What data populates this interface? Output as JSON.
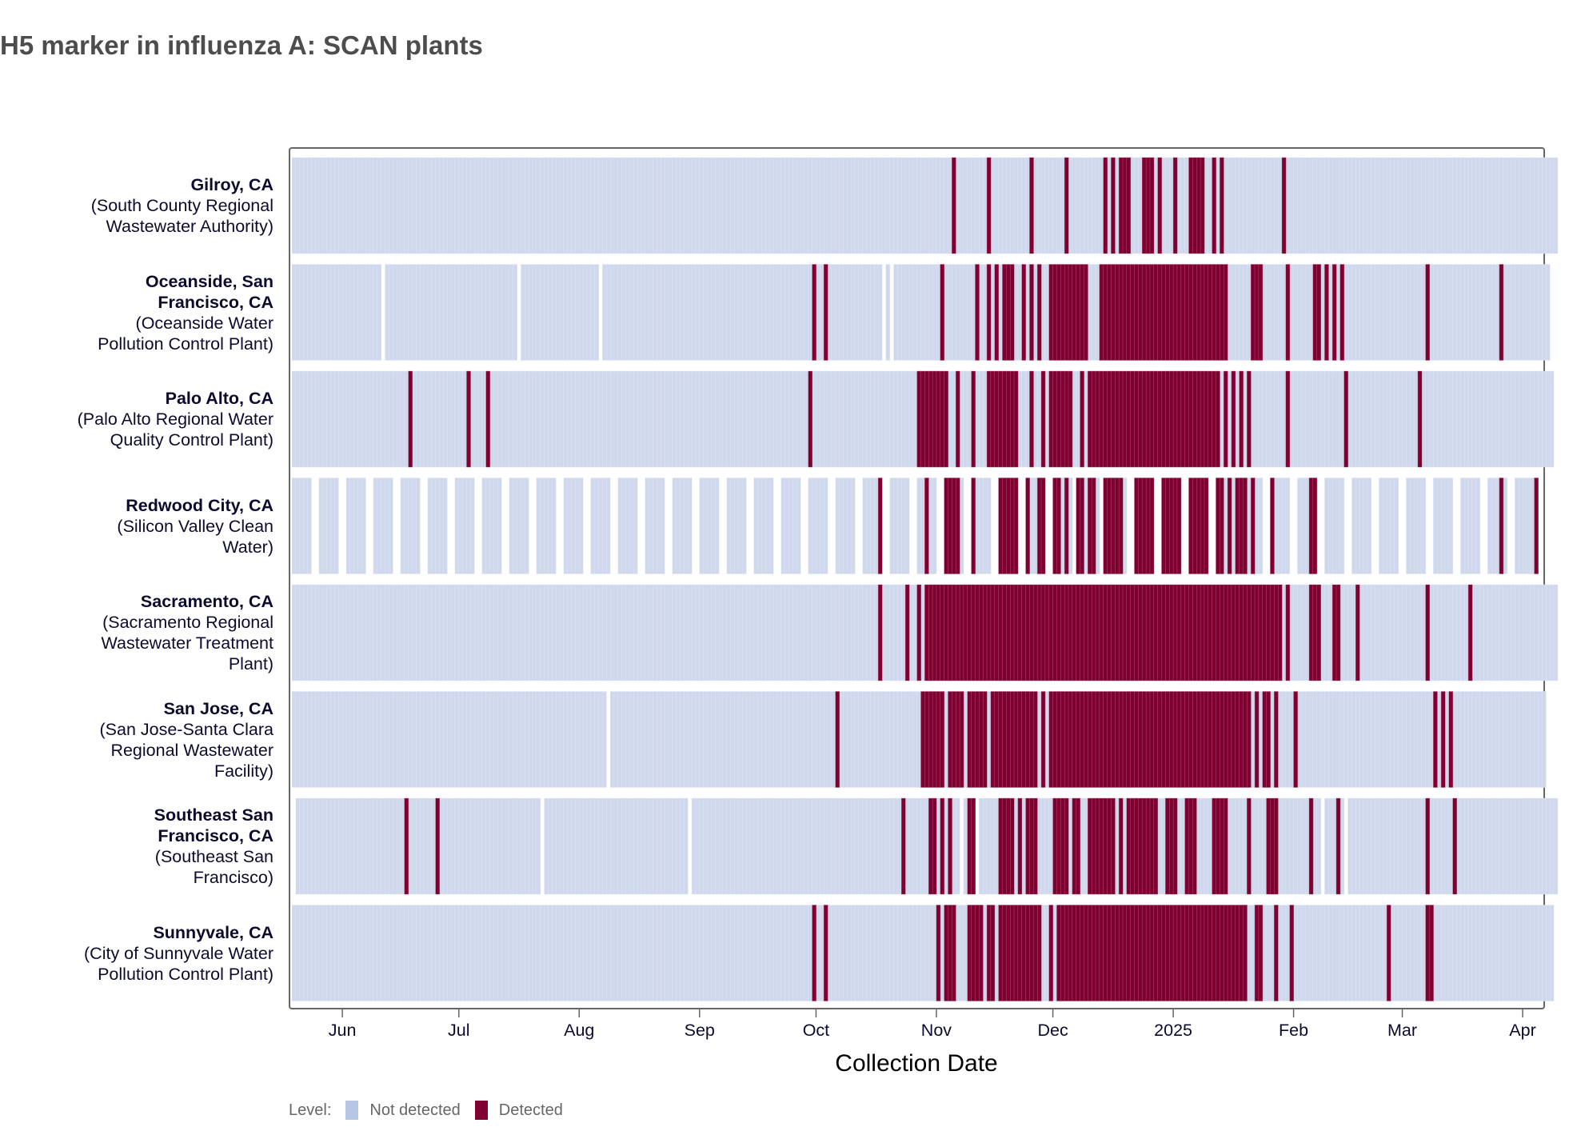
{
  "title": "H5 marker in influenza A: SCAN plants",
  "chart_data": {
    "type": "heatmap",
    "title": "H5 marker in influenza A: SCAN plants",
    "xlabel": "Collection Date",
    "ylabel": "",
    "x_start_date": "2024-05-19",
    "x_end_date": "2025-04-08",
    "x_unit": "days since 2024-05-19",
    "x_ticks": [
      {
        "label": "Jun",
        "day": 13
      },
      {
        "label": "Jul",
        "day": 43
      },
      {
        "label": "Aug",
        "day": 74
      },
      {
        "label": "Sep",
        "day": 105
      },
      {
        "label": "Oct",
        "day": 135
      },
      {
        "label": "Nov",
        "day": 166
      },
      {
        "label": "Dec",
        "day": 196
      },
      {
        "label": "2025",
        "day": 227
      },
      {
        "label": "Feb",
        "day": 258
      },
      {
        "label": "Mar",
        "day": 286
      },
      {
        "label": "Apr",
        "day": 317
      }
    ],
    "legend": {
      "title": "Level:",
      "position": "bottom-left",
      "entries": [
        {
          "label": "Not detected",
          "color": "#b8c6e6"
        },
        {
          "label": "Detected",
          "color": "#800033"
        }
      ]
    },
    "colors": {
      "not_detected_tile": "#cfd8ec",
      "detected": "#7f0030"
    },
    "rows": [
      {
        "city": "Gilroy, CA",
        "plant_lines": [
          "(South County Regional",
          "Wastewater Authority)"
        ],
        "city_lines": [
          "Gilroy, CA"
        ],
        "sampled": [
          [
            0,
            325
          ]
        ],
        "detected": [
          [
            170,
            170
          ],
          [
            179,
            179
          ],
          [
            190,
            190
          ],
          [
            199,
            199
          ],
          [
            209,
            209
          ],
          [
            211,
            211
          ],
          [
            213,
            215
          ],
          [
            219,
            221
          ],
          [
            223,
            223
          ],
          [
            227,
            227
          ],
          [
            231,
            233
          ],
          [
            234,
            234
          ],
          [
            237,
            237
          ],
          [
            239,
            239
          ],
          [
            255,
            255
          ]
        ]
      },
      {
        "city": "Oceanside, San Francisco, CA",
        "city_lines": [
          "Oceanside, San",
          "Francisco, CA"
        ],
        "plant_lines": [
          "(Oceanside Water",
          "Pollution Control Plant)"
        ],
        "sampled": [
          [
            0,
            22
          ],
          [
            24,
            57
          ],
          [
            59,
            78
          ],
          [
            80,
            151
          ],
          [
            153,
            153
          ],
          [
            155,
            323
          ]
        ],
        "detected": [
          [
            134,
            134
          ],
          [
            137,
            137
          ],
          [
            167,
            167
          ],
          [
            176,
            176
          ],
          [
            179,
            179
          ],
          [
            181,
            181
          ],
          [
            183,
            185
          ],
          [
            188,
            188
          ],
          [
            190,
            190
          ],
          [
            192,
            192
          ],
          [
            195,
            204
          ],
          [
            208,
            240
          ],
          [
            247,
            249
          ],
          [
            256,
            256
          ],
          [
            263,
            264
          ],
          [
            266,
            266
          ],
          [
            268,
            268
          ],
          [
            270,
            270
          ],
          [
            292,
            292
          ],
          [
            311,
            311
          ]
        ]
      },
      {
        "city": "Palo Alto, CA",
        "city_lines": [
          "Palo Alto, CA"
        ],
        "plant_lines": [
          "(Palo Alto Regional Water",
          "Quality Control Plant)"
        ],
        "sampled": [
          [
            0,
            324
          ]
        ],
        "detected": [
          [
            30,
            30
          ],
          [
            45,
            45
          ],
          [
            50,
            50
          ],
          [
            133,
            133
          ],
          [
            161,
            168
          ],
          [
            171,
            171
          ],
          [
            175,
            175
          ],
          [
            179,
            179
          ],
          [
            180,
            186
          ],
          [
            190,
            190
          ],
          [
            193,
            193
          ],
          [
            195,
            200
          ],
          [
            203,
            203
          ],
          [
            205,
            224
          ],
          [
            225,
            238
          ],
          [
            240,
            240
          ],
          [
            242,
            242
          ],
          [
            244,
            244
          ],
          [
            246,
            246
          ],
          [
            256,
            256
          ],
          [
            271,
            271
          ],
          [
            290,
            290
          ]
        ]
      },
      {
        "city": "Redwood City, CA",
        "city_lines": [
          "Redwood City, CA"
        ],
        "plant_lines": [
          "(Silicon Valley Clean",
          "Water)"
        ],
        "sampled": [
          [
            0,
            4
          ],
          [
            7,
            11
          ],
          [
            14,
            18
          ],
          [
            21,
            25
          ],
          [
            28,
            32
          ],
          [
            35,
            39
          ],
          [
            42,
            46
          ],
          [
            49,
            53
          ],
          [
            56,
            60
          ],
          [
            63,
            67
          ],
          [
            70,
            74
          ],
          [
            77,
            81
          ],
          [
            84,
            88
          ],
          [
            91,
            95
          ],
          [
            98,
            102
          ],
          [
            105,
            109
          ],
          [
            112,
            116
          ],
          [
            119,
            123
          ],
          [
            126,
            130
          ],
          [
            133,
            137
          ],
          [
            140,
            144
          ],
          [
            147,
            151
          ],
          [
            154,
            158
          ],
          [
            161,
            165
          ],
          [
            168,
            172
          ],
          [
            175,
            179
          ],
          [
            182,
            186
          ],
          [
            189,
            193
          ],
          [
            196,
            200
          ],
          [
            203,
            207
          ],
          [
            210,
            214
          ],
          [
            217,
            221
          ],
          [
            224,
            228
          ],
          [
            231,
            235
          ],
          [
            238,
            242
          ],
          [
            245,
            249
          ],
          [
            252,
            256
          ],
          [
            259,
            263
          ],
          [
            266,
            270
          ],
          [
            273,
            277
          ],
          [
            280,
            284
          ],
          [
            287,
            291
          ],
          [
            294,
            298
          ],
          [
            301,
            305
          ],
          [
            308,
            312
          ],
          [
            315,
            319
          ]
        ],
        "detected": [
          [
            151,
            151
          ],
          [
            163,
            163
          ],
          [
            168,
            171
          ],
          [
            175,
            175
          ],
          [
            182,
            186
          ],
          [
            189,
            189
          ],
          [
            192,
            193
          ],
          [
            196,
            197
          ],
          [
            199,
            199
          ],
          [
            202,
            202
          ],
          [
            203,
            203
          ],
          [
            205,
            206
          ],
          [
            209,
            213
          ],
          [
            217,
            221
          ],
          [
            224,
            228
          ],
          [
            231,
            235
          ],
          [
            238,
            239
          ],
          [
            241,
            241
          ],
          [
            243,
            245
          ],
          [
            247,
            247
          ],
          [
            252,
            252
          ],
          [
            262,
            263
          ],
          [
            311,
            311
          ],
          [
            320,
            320
          ]
        ]
      },
      {
        "city": "Sacramento, CA",
        "city_lines": [
          "Sacramento, CA"
        ],
        "plant_lines": [
          "(Sacramento Regional",
          "Wastewater Treatment",
          "Plant)"
        ],
        "sampled": [
          [
            0,
            325
          ]
        ],
        "detected": [
          [
            151,
            151
          ],
          [
            158,
            158
          ],
          [
            161,
            161
          ],
          [
            163,
            165
          ],
          [
            166,
            181
          ],
          [
            182,
            189
          ],
          [
            190,
            195
          ],
          [
            196,
            226
          ],
          [
            227,
            244
          ],
          [
            245,
            254
          ],
          [
            256,
            256
          ],
          [
            262,
            264
          ],
          [
            268,
            269
          ],
          [
            274,
            274
          ],
          [
            292,
            292
          ],
          [
            303,
            303
          ]
        ]
      },
      {
        "city": "San Jose, CA",
        "city_lines": [
          "San Jose, CA"
        ],
        "plant_lines": [
          "(San Jose-Santa Clara",
          "Regional Wastewater",
          "Facility)"
        ],
        "sampled": [
          [
            0,
            80
          ],
          [
            82,
            322
          ]
        ],
        "detected": [
          [
            140,
            140
          ],
          [
            162,
            167
          ],
          [
            169,
            172
          ],
          [
            174,
            178
          ],
          [
            180,
            191
          ],
          [
            193,
            193
          ],
          [
            195,
            200
          ],
          [
            201,
            232
          ],
          [
            233,
            246
          ],
          [
            248,
            248
          ],
          [
            250,
            251
          ],
          [
            253,
            253
          ],
          [
            258,
            258
          ],
          [
            294,
            294
          ],
          [
            296,
            296
          ],
          [
            298,
            298
          ]
        ]
      },
      {
        "city": "Southeast San Francisco, CA",
        "city_lines": [
          "Southeast San",
          "Francisco, CA"
        ],
        "plant_lines": [
          "(Southeast San",
          "Francisco)"
        ],
        "sampled": [
          [
            1,
            28
          ],
          [
            30,
            63
          ],
          [
            65,
            101
          ],
          [
            103,
            171
          ],
          [
            173,
            175
          ],
          [
            177,
            195
          ],
          [
            197,
            250
          ],
          [
            252,
            264
          ],
          [
            266,
            270
          ],
          [
            272,
            325
          ]
        ],
        "detected": [
          [
            29,
            29
          ],
          [
            37,
            37
          ],
          [
            157,
            157
          ],
          [
            164,
            165
          ],
          [
            167,
            167
          ],
          [
            169,
            169
          ],
          [
            174,
            175
          ],
          [
            182,
            185
          ],
          [
            187,
            187
          ],
          [
            189,
            191
          ],
          [
            196,
            199
          ],
          [
            201,
            202
          ],
          [
            205,
            211
          ],
          [
            213,
            213
          ],
          [
            215,
            222
          ],
          [
            225,
            227
          ],
          [
            230,
            232
          ],
          [
            237,
            240
          ],
          [
            246,
            246
          ],
          [
            251,
            253
          ],
          [
            262,
            262
          ],
          [
            269,
            269
          ],
          [
            292,
            292
          ],
          [
            299,
            299
          ]
        ]
      },
      {
        "city": "Sunnyvale, CA",
        "city_lines": [
          "Sunnyvale, CA"
        ],
        "plant_lines": [
          "(City of Sunnyvale Water",
          "Pollution Control Plant)"
        ],
        "sampled": [
          [
            0,
            324
          ]
        ],
        "detected": [
          [
            134,
            134
          ],
          [
            137,
            137
          ],
          [
            166,
            166
          ],
          [
            168,
            170
          ],
          [
            174,
            177
          ],
          [
            179,
            180
          ],
          [
            182,
            192
          ],
          [
            195,
            195
          ],
          [
            197,
            226
          ],
          [
            227,
            245
          ],
          [
            248,
            249
          ],
          [
            253,
            253
          ],
          [
            257,
            257
          ],
          [
            282,
            282
          ],
          [
            292,
            293
          ]
        ]
      }
    ]
  }
}
